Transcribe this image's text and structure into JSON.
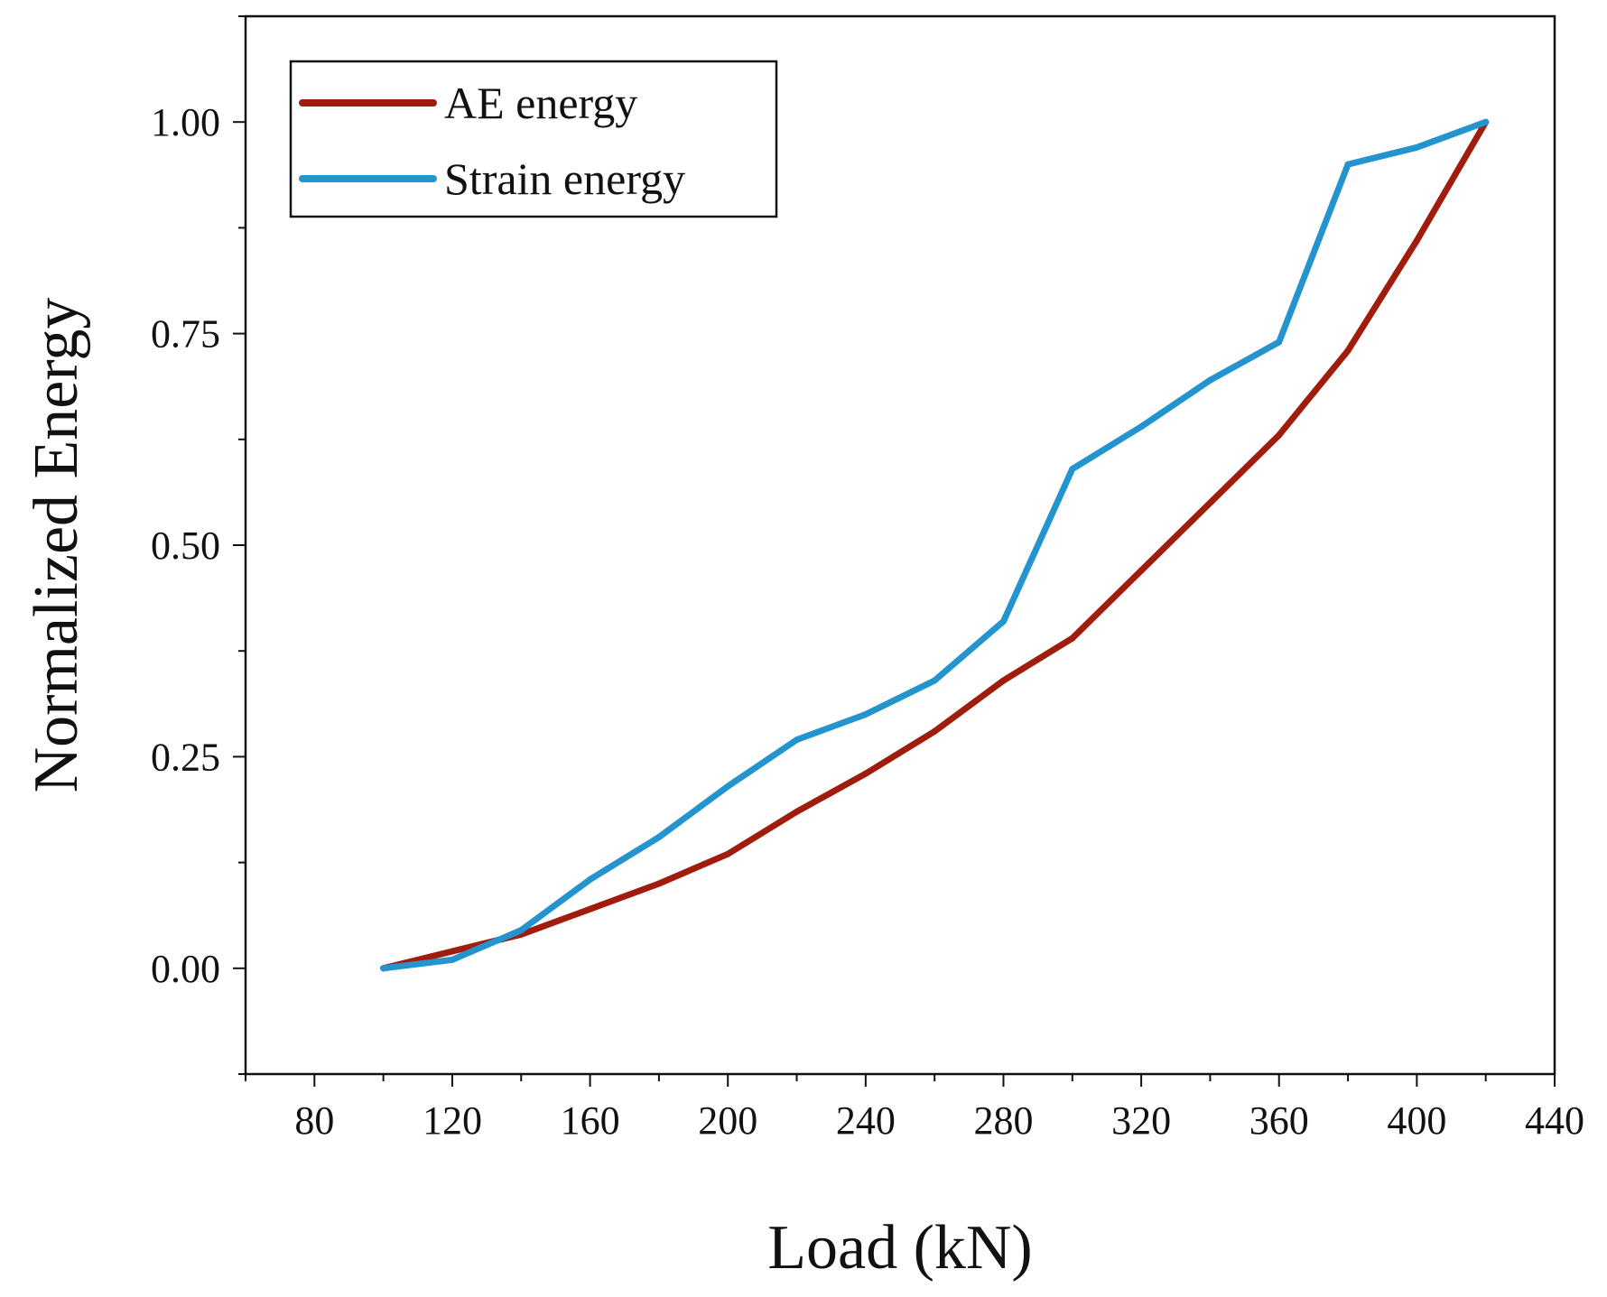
{
  "chart_data": {
    "type": "line",
    "title": "",
    "xlabel": "Load (kN)",
    "ylabel": "Normalized Energy",
    "xlim": [
      60,
      440
    ],
    "ylim": [
      -0.125,
      1.125
    ],
    "xticks": [
      80,
      120,
      160,
      200,
      240,
      280,
      320,
      360,
      400,
      440
    ],
    "xtick_labels": [
      "80",
      "120",
      "160",
      "200",
      "240",
      "280",
      "320",
      "360",
      "400",
      "440"
    ],
    "yticks": [
      0,
      0.25,
      0.5,
      0.75,
      1.0
    ],
    "ytick_labels": [
      "0.00",
      "0.25",
      "0.50",
      "0.75",
      "1.00"
    ],
    "grid": false,
    "legend_position": "top-left",
    "series": [
      {
        "name": "AE energy",
        "color": "#a01c0c",
        "x": [
          100,
          120,
          140,
          160,
          180,
          200,
          220,
          240,
          260,
          280,
          300,
          320,
          340,
          360,
          380,
          400,
          420
        ],
        "y": [
          0,
          0.02,
          0.04,
          0.07,
          0.1,
          0.135,
          0.185,
          0.23,
          0.28,
          0.34,
          0.39,
          0.47,
          0.55,
          0.63,
          0.73,
          0.86,
          1.0
        ]
      },
      {
        "name": "Strain energy",
        "color": "#2494ce",
        "x": [
          100,
          120,
          140,
          160,
          180,
          200,
          220,
          240,
          260,
          280,
          300,
          320,
          340,
          360,
          380,
          400,
          420
        ],
        "y": [
          0,
          0.01,
          0.045,
          0.105,
          0.155,
          0.215,
          0.27,
          0.3,
          0.34,
          0.41,
          0.59,
          0.64,
          0.695,
          0.74,
          0.95,
          0.97,
          1.0
        ]
      }
    ]
  }
}
